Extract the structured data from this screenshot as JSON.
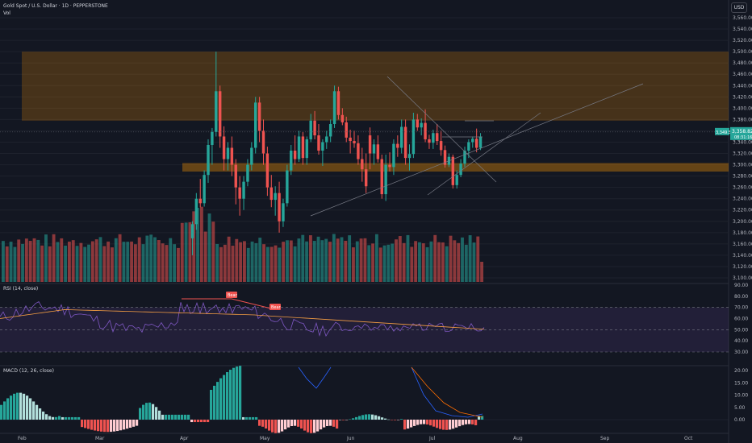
{
  "header": {
    "symbol_title": "Gold Spot / U.S. Dollar · 1D · PEPPERSTONE",
    "vol_label": "Vol",
    "currency_button": "USD"
  },
  "price_axis": {
    "ticks": [
      "3,560.00",
      "3,540.00",
      "3,520.00",
      "3,500.00",
      "3,480.00",
      "3,460.00",
      "3,440.00",
      "3,420.00",
      "3,400.00",
      "3,380.00",
      "3,360.00",
      "3,340.00",
      "3,320.00",
      "3,300.00",
      "3,280.00",
      "3,260.00",
      "3,240.00",
      "3,220.00",
      "3,200.00",
      "3,180.00",
      "3,160.00",
      "3,140.00",
      "3,120.00",
      "3,100.00"
    ],
    "last_price_tag": "3,349.50",
    "last_price_countdown": "3,358.82",
    "last_price_sub": "08:31:16"
  },
  "rsi": {
    "label": "RSI (14, close)",
    "ticks": [
      "90.00",
      "80.00",
      "70.00",
      "60.00",
      "50.00",
      "40.00",
      "30.00"
    ],
    "bear_tag_1": "Bear",
    "bear_tag_2": "Bear"
  },
  "macd": {
    "label": "MACD (12, 26, close)",
    "ticks": [
      "20.00",
      "15.00",
      "10.00",
      "5.00",
      "0.00"
    ]
  },
  "time_axis": {
    "labels": [
      "Feb",
      "Mar",
      "Apr",
      "May",
      "Jun",
      "Jul",
      "Aug",
      "Sep",
      "Oct"
    ]
  },
  "colors": {
    "background": "#131722",
    "up": "#26a69a",
    "down": "#ef5350",
    "zone": "#ff9800",
    "rsi_band": "#7e57c2",
    "rsi_line": "#7e57c2",
    "rsi_ma": "#f59e42",
    "macd_line": "#2962ff",
    "signal_line": "#ff6d00"
  },
  "chart_data": {
    "type": "candlestick",
    "price_ylim": [
      3100,
      3570
    ],
    "zones": [
      {
        "from": 3378,
        "to": 3500
      },
      {
        "from": 3288,
        "to": 3303
      }
    ],
    "candles": [
      {
        "o": 3352,
        "h": 3366,
        "l": 3292,
        "c": 3320
      },
      {
        "o": 3320,
        "h": 3345,
        "l": 3300,
        "c": 3336
      },
      {
        "o": 3336,
        "h": 3352,
        "l": 3304,
        "c": 3310
      },
      {
        "o": 3310,
        "h": 3318,
        "l": 3240,
        "c": 3248
      },
      {
        "o": 3248,
        "h": 3318,
        "l": 3236,
        "c": 3300
      },
      {
        "o": 3300,
        "h": 3322,
        "l": 3288,
        "c": 3296
      },
      {
        "o": 3296,
        "h": 3345,
        "l": 3282,
        "c": 3337
      },
      {
        "o": 3337,
        "h": 3352,
        "l": 3314,
        "c": 3330
      },
      {
        "o": 3330,
        "h": 3380,
        "l": 3320,
        "c": 3367
      },
      {
        "o": 3367,
        "h": 3380,
        "l": 3300,
        "c": 3312
      },
      {
        "o": 3312,
        "h": 3336,
        "l": 3290,
        "c": 3319
      },
      {
        "o": 3319,
        "h": 3392,
        "l": 3312,
        "c": 3380
      },
      {
        "o": 3380,
        "h": 3390,
        "l": 3360,
        "c": 3366
      },
      {
        "o": 3366,
        "h": 3382,
        "l": 3352,
        "c": 3374
      },
      {
        "o": 3374,
        "h": 3398,
        "l": 3340,
        "c": 3345
      },
      {
        "o": 3345,
        "h": 3353,
        "l": 3328,
        "c": 3339
      },
      {
        "o": 3339,
        "h": 3362,
        "l": 3328,
        "c": 3356
      },
      {
        "o": 3356,
        "h": 3372,
        "l": 3335,
        "c": 3342
      },
      {
        "o": 3342,
        "h": 3360,
        "l": 3316,
        "c": 3326
      },
      {
        "o": 3326,
        "h": 3334,
        "l": 3295,
        "c": 3300
      },
      {
        "o": 3300,
        "h": 3320,
        "l": 3296,
        "c": 3314
      },
      {
        "o": 3314,
        "h": 3318,
        "l": 3258,
        "c": 3264
      },
      {
        "o": 3264,
        "h": 3290,
        "l": 3258,
        "c": 3282
      },
      {
        "o": 3282,
        "h": 3310,
        "l": 3278,
        "c": 3302
      },
      {
        "o": 3302,
        "h": 3332,
        "l": 3296,
        "c": 3325
      },
      {
        "o": 3325,
        "h": 3345,
        "l": 3312,
        "c": 3340
      },
      {
        "o": 3340,
        "h": 3350,
        "l": 3330,
        "c": 3346
      },
      {
        "o": 3346,
        "h": 3364,
        "l": 3322,
        "c": 3330
      },
      {
        "o": 3330,
        "h": 3356,
        "l": 3326,
        "c": 3350
      }
    ],
    "volume": [
      0.75,
      0.78,
      0.72,
      0.84,
      0.78,
      0.7,
      0.75,
      0.72,
      0.8,
      0.82,
      0.78,
      0.76,
      0.82,
      0.74,
      0.8,
      0.77,
      0.72,
      0.7,
      0.76,
      0.8,
      0.74,
      0.78,
      0.73,
      0.76,
      0.71,
      0.74,
      0.78,
      0.72,
      0.4
    ],
    "macd_hist_range": [
      -6,
      22
    ],
    "rsi_range": [
      25,
      90
    ]
  }
}
